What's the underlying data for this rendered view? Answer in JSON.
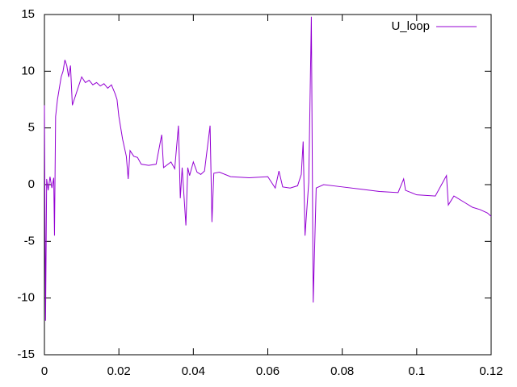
{
  "chart_data": {
    "type": "line",
    "x": [
      0,
      0.0003,
      0.0006,
      0.001,
      0.0015,
      0.002,
      0.0025,
      0.0027,
      0.003,
      0.0035,
      0.004,
      0.0045,
      0.005,
      0.0055,
      0.006,
      0.0065,
      0.007,
      0.0075,
      0.008,
      0.009,
      0.01,
      0.011,
      0.012,
      0.013,
      0.014,
      0.015,
      0.016,
      0.017,
      0.018,
      0.019,
      0.0195,
      0.02,
      0.021,
      0.022,
      0.0225,
      0.023,
      0.024,
      0.025,
      0.026,
      0.028,
      0.03,
      0.0315,
      0.032,
      0.034,
      0.035,
      0.036,
      0.0365,
      0.037,
      0.038,
      0.0385,
      0.039,
      0.04,
      0.041,
      0.042,
      0.043,
      0.0445,
      0.045,
      0.0455,
      0.047,
      0.05,
      0.055,
      0.06,
      0.062,
      0.063,
      0.064,
      0.066,
      0.068,
      0.069,
      0.0695,
      0.07,
      0.071,
      0.0717,
      0.0722,
      0.073,
      0.075,
      0.08,
      0.085,
      0.09,
      0.095,
      0.0965,
      0.097,
      0.1,
      0.105,
      0.108,
      0.1085,
      0.11,
      0.113,
      0.115,
      0.117,
      0.119,
      0.12
    ],
    "series": [
      {
        "name": "U_loop",
        "color": "#9400d3",
        "values": [
          7,
          -12,
          0.5,
          -0.5,
          0.7,
          -0.3,
          0.6,
          -4.5,
          6,
          7.5,
          8.5,
          9.5,
          10,
          11,
          10.5,
          9.5,
          10.5,
          7,
          7.5,
          8.5,
          9.5,
          9,
          9.2,
          8.8,
          9,
          8.7,
          8.9,
          8.5,
          8.8,
          8,
          7.5,
          6,
          4,
          2.5,
          0.5,
          3,
          2.5,
          2.4,
          1.8,
          1.7,
          1.8,
          4.4,
          1.5,
          2,
          1.4,
          5.2,
          -1.2,
          1.5,
          -3.6,
          1.5,
          0.8,
          2,
          1.1,
          0.9,
          1.2,
          5.2,
          -3.3,
          1,
          1.1,
          0.7,
          0.6,
          0.7,
          -0.3,
          1.2,
          -0.2,
          -0.3,
          -0.1,
          0.9,
          3.8,
          -4.5,
          0.2,
          14.8,
          -10.4,
          -0.3,
          0,
          -0.2,
          -0.4,
          -0.6,
          -0.7,
          0.5,
          -0.5,
          -0.9,
          -1,
          0.8,
          -1.8,
          -1,
          -1.6,
          -2,
          -2.2,
          -2.5,
          -2.8
        ]
      }
    ],
    "xlim": [
      0,
      0.12
    ],
    "xticks": [
      0,
      0.02,
      0.04,
      0.06,
      0.08,
      0.1,
      0.12
    ],
    "ylim": [
      -15,
      15
    ],
    "yticks": [
      -15,
      -10,
      -5,
      0,
      5,
      10,
      15
    ],
    "legend": "top-right"
  }
}
